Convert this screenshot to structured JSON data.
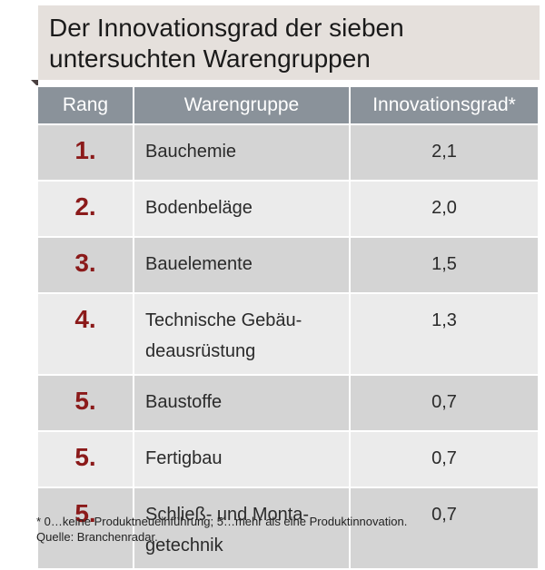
{
  "title": {
    "line1": "Der Innovationsgrad der sieben",
    "line2": "untersuchten Warengruppen"
  },
  "table": {
    "headers": [
      "Rang",
      "Warengruppe",
      "Innovationsgrad*"
    ],
    "rows": [
      {
        "rank": "1.",
        "group": [
          "Bauchemie"
        ],
        "value": "2,1"
      },
      {
        "rank": "2.",
        "group": [
          "Bodenbeläge"
        ],
        "value": "2,0"
      },
      {
        "rank": "3.",
        "group": [
          "Bauelemente"
        ],
        "value": "1,5"
      },
      {
        "rank": "4.",
        "group": [
          "Technische Gebäu-",
          "deausrüstung"
        ],
        "value": "1,3"
      },
      {
        "rank": "5.",
        "group": [
          "Baustoffe"
        ],
        "value": "0,7"
      },
      {
        "rank": "5.",
        "group": [
          "Fertigbau"
        ],
        "value": "0,7"
      },
      {
        "rank": "5.",
        "group": [
          "Schließ- und Monta-",
          "getechnik"
        ],
        "value": "0,7"
      }
    ]
  },
  "footer": {
    "note": "* 0…keine Produktneueinführung; 5…mehr als eine Produktinnovation.",
    "source": "Quelle: Branchenradar."
  },
  "colors": {
    "title_bg": "#e5e0dc",
    "header_bg": "#8a929a",
    "row_dark": "#d4d4d4",
    "row_light": "#ebebeb",
    "rank_red": "#8b1a1a"
  }
}
